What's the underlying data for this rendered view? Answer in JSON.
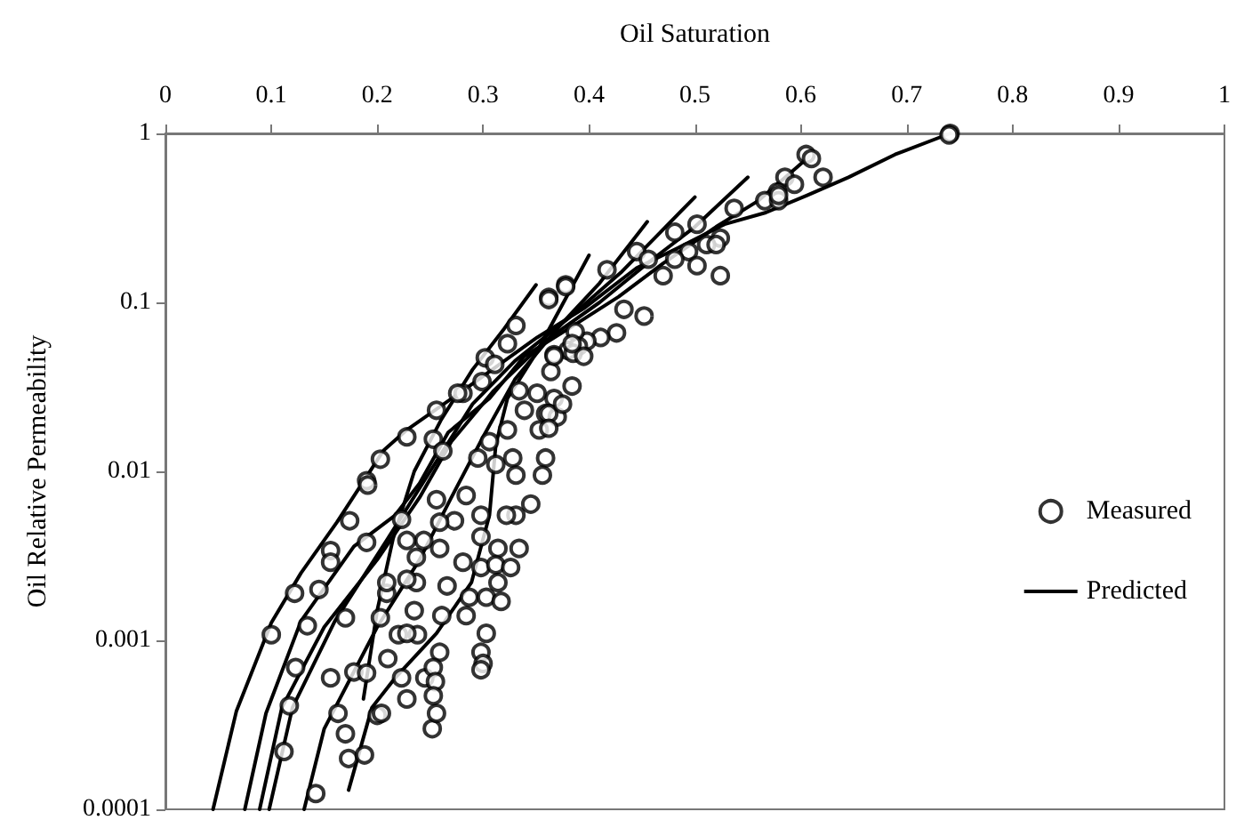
{
  "chart_data": {
    "type": "scatter",
    "xlabel": "Oil Saturation",
    "ylabel": "Oil Relative Permeability",
    "log": "y",
    "xlim": [
      0,
      1
    ],
    "xticks": [
      0,
      0.1,
      0.2,
      0.3,
      0.4,
      0.5,
      0.6,
      0.7,
      0.8,
      0.9,
      1
    ],
    "ylim": [
      0.0001,
      1
    ],
    "yticks": [
      0.0001,
      0.001,
      0.01,
      0.1,
      1
    ],
    "grid": false,
    "legend": "right",
    "series": [
      {
        "name": "Measured",
        "marker": "circle",
        "color": "#000000",
        "x": [
          0.741,
          0.74,
          0.605,
          0.61,
          0.621,
          0.585,
          0.594,
          0.578,
          0.566,
          0.579,
          0.579,
          0.537,
          0.502,
          0.481,
          0.524,
          0.511,
          0.52,
          0.494,
          0.445,
          0.456,
          0.481,
          0.502,
          0.417,
          0.47,
          0.524,
          0.378,
          0.362,
          0.433,
          0.452,
          0.426,
          0.411,
          0.398,
          0.387,
          0.38,
          0.39,
          0.385,
          0.367,
          0.364,
          0.384,
          0.367,
          0.351,
          0.359,
          0.37,
          0.353,
          0.359,
          0.378,
          0.362,
          0.331,
          0.323,
          0.302,
          0.311,
          0.367,
          0.395,
          0.384,
          0.299,
          0.281,
          0.276,
          0.256,
          0.334,
          0.362,
          0.375,
          0.339,
          0.323,
          0.228,
          0.253,
          0.262,
          0.306,
          0.362,
          0.203,
          0.19,
          0.328,
          0.331,
          0.356,
          0.312,
          0.191,
          0.174,
          0.156,
          0.156,
          0.122,
          0.145,
          0.134,
          0.1,
          0.17,
          0.19,
          0.123,
          0.156,
          0.117,
          0.112,
          0.163,
          0.17,
          0.173,
          0.142,
          0.188,
          0.2,
          0.204,
          0.228,
          0.223,
          0.245,
          0.178,
          0.19,
          0.21,
          0.22,
          0.238,
          0.228,
          0.203,
          0.235,
          0.261,
          0.266,
          0.237,
          0.209,
          0.209,
          0.259,
          0.237,
          0.244,
          0.273,
          0.259,
          0.223,
          0.228,
          0.256,
          0.284,
          0.298,
          0.298,
          0.314,
          0.334,
          0.281,
          0.298,
          0.312,
          0.326,
          0.287,
          0.303,
          0.314,
          0.317,
          0.284,
          0.303,
          0.259,
          0.253,
          0.255,
          0.253,
          0.252,
          0.256,
          0.298,
          0.3,
          0.298,
          0.331,
          0.345,
          0.322,
          0.295,
          0.228
        ],
        "values": [
          1.0,
          0.98,
          0.75,
          0.71,
          0.55,
          0.55,
          0.5,
          0.45,
          0.4,
          0.4,
          0.43,
          0.36,
          0.29,
          0.26,
          0.24,
          0.22,
          0.22,
          0.2,
          0.2,
          0.18,
          0.18,
          0.165,
          0.156,
          0.144,
          0.144,
          0.127,
          0.107,
          0.091,
          0.083,
          0.066,
          0.062,
          0.059,
          0.067,
          0.052,
          0.055,
          0.05,
          0.049,
          0.039,
          0.032,
          0.027,
          0.029,
          0.022,
          0.021,
          0.0176,
          0.012,
          0.124,
          0.104,
          0.073,
          0.057,
          0.047,
          0.043,
          0.048,
          0.048,
          0.057,
          0.034,
          0.029,
          0.029,
          0.023,
          0.03,
          0.022,
          0.025,
          0.023,
          0.0176,
          0.016,
          0.0155,
          0.0132,
          0.015,
          0.018,
          0.0118,
          0.0088,
          0.012,
          0.0095,
          0.0095,
          0.011,
          0.0083,
          0.0051,
          0.0034,
          0.0029,
          0.0019,
          0.002,
          0.00122,
          0.00108,
          0.00136,
          0.0038,
          0.00069,
          0.0006,
          0.00041,
          0.00022,
          0.00037,
          0.00028,
          0.0002,
          0.000124,
          0.00021,
          0.00036,
          0.00037,
          0.00045,
          0.0006,
          0.0006,
          0.00065,
          0.00064,
          0.00078,
          0.00108,
          0.00108,
          0.0011,
          0.00136,
          0.0015,
          0.0014,
          0.0021,
          0.0022,
          0.0019,
          0.0022,
          0.0035,
          0.0031,
          0.0039,
          0.0051,
          0.005,
          0.0052,
          0.0039,
          0.0068,
          0.0072,
          0.0055,
          0.0041,
          0.0035,
          0.0035,
          0.0029,
          0.0027,
          0.0028,
          0.0027,
          0.0018,
          0.0018,
          0.0022,
          0.0017,
          0.0014,
          0.0011,
          0.00085,
          0.00069,
          0.00057,
          0.00047,
          0.0003,
          0.00037,
          0.00085,
          0.00073,
          0.00067,
          0.0055,
          0.0064,
          0.0055,
          0.012,
          0.0023
        ]
      },
      {
        "name": "Predicted",
        "type": "line",
        "marker": "none",
        "line_style": "solid",
        "color": "#000000",
        "x": [
          0.045,
          0.067,
          0.1,
          0.128,
          0.162,
          0.206,
          0.228,
          0.284,
          0.351,
          0.395,
          0.445,
          0.484,
          0.528,
          0.567,
          0.606,
          0.645,
          0.689,
          0.741
        ],
        "values": [
          0.0001,
          0.00038,
          0.00127,
          0.0025,
          0.005,
          0.0133,
          0.0176,
          0.031,
          0.062,
          0.092,
          0.16,
          0.21,
          0.29,
          0.34,
          0.43,
          0.55,
          0.75,
          1.0
        ]
      },
      {
        "type": "line",
        "marker": "none",
        "line_style": "solid",
        "color": "#000000",
        "x": [
          0.075,
          0.095,
          0.128,
          0.178,
          0.217,
          0.24,
          0.267,
          0.306,
          0.339,
          0.384,
          0.428,
          0.47,
          0.52,
          0.56,
          0.608
        ],
        "values": [
          0.0001,
          0.00037,
          0.0013,
          0.0036,
          0.0055,
          0.0085,
          0.017,
          0.027,
          0.048,
          0.072,
          0.108,
          0.17,
          0.28,
          0.4,
          0.73
        ]
      },
      {
        "type": "line",
        "marker": "none",
        "line_style": "solid",
        "color": "#000000",
        "x": [
          0.089,
          0.11,
          0.15,
          0.2,
          0.24,
          0.27,
          0.31,
          0.36,
          0.41,
          0.46,
          0.5,
          0.55
        ],
        "values": [
          0.0001,
          0.0004,
          0.0012,
          0.003,
          0.007,
          0.015,
          0.03,
          0.06,
          0.1,
          0.18,
          0.28,
          0.55
        ]
      },
      {
        "type": "line",
        "marker": "none",
        "line_style": "solid",
        "color": "#000000",
        "x": [
          0.098,
          0.12,
          0.16,
          0.21,
          0.25,
          0.29,
          0.33,
          0.38,
          0.43,
          0.5
        ],
        "values": [
          0.0001,
          0.0004,
          0.0013,
          0.004,
          0.01,
          0.025,
          0.045,
          0.08,
          0.15,
          0.42
        ]
      },
      {
        "type": "line",
        "marker": "none",
        "line_style": "solid",
        "color": "#000000",
        "x": [
          0.131,
          0.15,
          0.2,
          0.24,
          0.27,
          0.3,
          0.33,
          0.37,
          0.41,
          0.455
        ],
        "values": [
          0.0001,
          0.0003,
          0.0012,
          0.003,
          0.007,
          0.016,
          0.035,
          0.07,
          0.13,
          0.3
        ]
      },
      {
        "type": "line",
        "marker": "none",
        "line_style": "solid",
        "color": "#000000",
        "x": [
          0.173,
          0.195,
          0.217,
          0.256,
          0.289,
          0.306,
          0.312,
          0.323,
          0.35,
          0.4
        ],
        "values": [
          0.00013,
          0.0004,
          0.0006,
          0.0011,
          0.0022,
          0.0055,
          0.0144,
          0.027,
          0.05,
          0.19
        ]
      },
      {
        "type": "line",
        "marker": "none",
        "line_style": "solid",
        "color": "#000000",
        "x": [
          0.187,
          0.2,
          0.215,
          0.235,
          0.26,
          0.29,
          0.32,
          0.35
        ],
        "values": [
          0.00045,
          0.0015,
          0.004,
          0.01,
          0.02,
          0.04,
          0.07,
          0.127
        ]
      }
    ]
  }
}
